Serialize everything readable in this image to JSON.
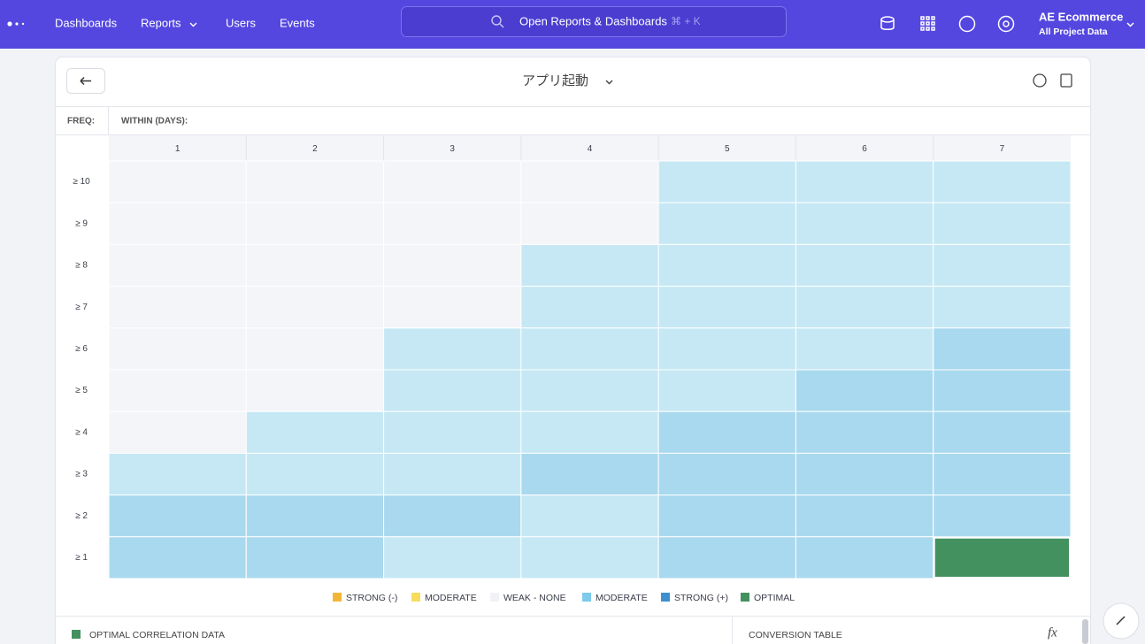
{
  "nav": {
    "items": [
      "Dashboards",
      "Reports",
      "Users",
      "Events"
    ],
    "search": "Open Reports & Dashboards",
    "shortcut": "⌘ + K",
    "project": {
      "name": "AE Ecommerce",
      "scope": "All Project Data"
    }
  },
  "report": {
    "title": "アプリ起動",
    "freq_label": "FREQ:",
    "within_label": "WITHIN (DAYS):",
    "columns": [
      "1",
      "2",
      "3",
      "4",
      "5",
      "6",
      "7"
    ],
    "rows": [
      "≥ 10",
      "≥ 9",
      "≥ 8",
      "≥ 7",
      "≥ 6",
      "≥ 5",
      "≥ 4",
      "≥ 3",
      "≥ 2",
      "≥ 1"
    ],
    "cells": [
      [
        "#f4f5f9",
        "#f4f5f9",
        "#f4f5f9",
        "#f4f5f9",
        "#c6e8f4",
        "#c6e8f4",
        "#c6e8f4"
      ],
      [
        "#f4f5f9",
        "#f4f5f9",
        "#f4f5f9",
        "#f4f5f9",
        "#c6e8f4",
        "#c6e8f4",
        "#c6e8f4"
      ],
      [
        "#f4f5f9",
        "#f4f5f9",
        "#f4f5f9",
        "#c6e8f4",
        "#c6e8f4",
        "#c6e8f4",
        "#c6e8f4"
      ],
      [
        "#f4f5f9",
        "#f4f5f9",
        "#f4f5f9",
        "#c6e8f4",
        "#c6e8f4",
        "#c6e8f4",
        "#c6e8f4"
      ],
      [
        "#f4f5f9",
        "#f4f5f9",
        "#c6e8f4",
        "#c6e8f4",
        "#c6e8f4",
        "#c6e8f4",
        "#a9d9ee"
      ],
      [
        "#f4f5f9",
        "#f4f5f9",
        "#c6e8f4",
        "#c6e8f4",
        "#c6e8f4",
        "#a9d9ee",
        "#a9d9ee"
      ],
      [
        "#f4f5f9",
        "#c6e8f4",
        "#c6e8f4",
        "#c6e8f4",
        "#a9d9ee",
        "#a9d9ee",
        "#a9d9ee"
      ],
      [
        "#c6e8f4",
        "#c6e8f4",
        "#c6e8f4",
        "#a9d9ee",
        "#a9d9ee",
        "#a9d9ee",
        "#a9d9ee"
      ],
      [
        "#a9d9ee",
        "#a9d9ee",
        "#a9d9ee",
        "#c6e8f4",
        "#a9d9ee",
        "#a9d9ee",
        "#a9d9ee"
      ],
      [
        "#a9d9ee",
        "#a9d9ee",
        "#c6e8f4",
        "#c6e8f4",
        "#a9d9ee",
        "#a9d9ee",
        "#43915f"
      ]
    ],
    "legend": [
      {
        "label": "STRONG (-)",
        "color": "#f2b636"
      },
      {
        "label": "MODERATE",
        "color": "#f8dc5c"
      },
      {
        "label": "WEAK - NONE",
        "color": "#f1f2f5"
      },
      {
        "label": "MODERATE",
        "color": "#7dcaea"
      },
      {
        "label": "STRONG (+)",
        "color": "#3e8fd0"
      },
      {
        "label": "OPTIMAL",
        "color": "#43915f"
      }
    ]
  },
  "panels": {
    "left": "OPTIMAL CORRELATION DATA",
    "right": "CONVERSION TABLE"
  }
}
